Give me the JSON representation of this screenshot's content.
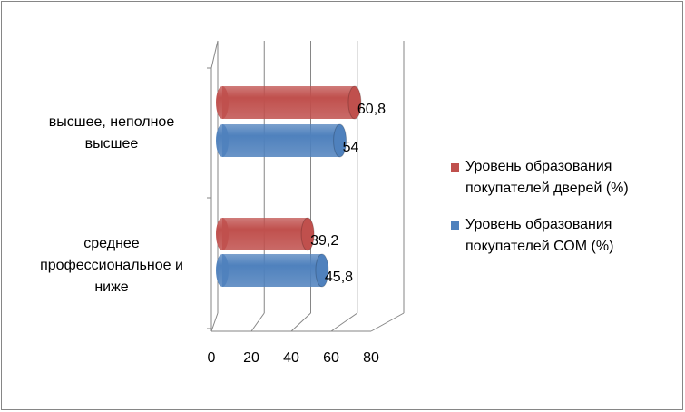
{
  "chart_data": {
    "type": "bar3d-horizontal",
    "categories": [
      "высшее, неполное высшее",
      "среднее профессиональное и ниже"
    ],
    "series": [
      {
        "name": "Уровень образования покупателей дверей (%)",
        "color": "#c0504d",
        "values": [
          60.8,
          39.2
        ],
        "value_labels": [
          "60,8",
          "39,2"
        ]
      },
      {
        "name": "Уровень образования покупателей СОМ (%)",
        "color": "#4f81bd",
        "values": [
          54,
          45.8
        ],
        "value_labels": [
          "54",
          "45,8"
        ]
      }
    ],
    "xlim": [
      0,
      80
    ],
    "xticks": [
      0,
      20,
      40,
      60,
      80
    ],
    "grid": true,
    "legend": "right"
  }
}
